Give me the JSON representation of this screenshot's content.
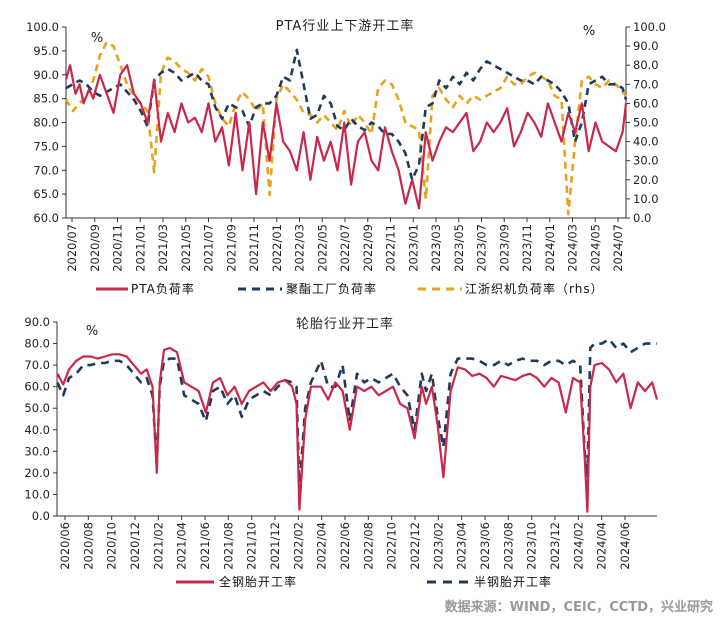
{
  "source_note": "数据来源：WIND，CEIC，CCTD，兴业研究",
  "colors": {
    "pta": "#c8284a",
    "polyester": "#203a5c",
    "weaving": "#e8a21c",
    "allsteel": "#c8284a",
    "semisteel": "#203a5c"
  },
  "chart_data": [
    {
      "type": "line",
      "title": "PTA行业上下游开工率",
      "left_unit": "%",
      "right_unit": "%",
      "ylim_left": [
        60,
        100
      ],
      "ylim_right": [
        0,
        100
      ],
      "yticks_left": [
        "60.0",
        "65.0",
        "70.0",
        "75.0",
        "80.0",
        "85.0",
        "90.0",
        "95.0",
        "100.0"
      ],
      "yticks_right": [
        "0.0",
        "10.0",
        "20.0",
        "30.0",
        "40.0",
        "50.0",
        "60.0",
        "70.0",
        "80.0",
        "90.0",
        "100.0"
      ],
      "x_tick_labels": [
        "2020/07",
        "2020/09",
        "2020/11",
        "2021/01",
        "2021/03",
        "2021/05",
        "2021/07",
        "2021/09",
        "2021/11",
        "2022/01",
        "2022/03",
        "2022/05",
        "2022/07",
        "2022/09",
        "2022/11",
        "2023/01",
        "2023/03",
        "2023/05",
        "2023/07",
        "2023/09",
        "2023/11",
        "2024/01",
        "2024/03",
        "2024/05",
        "2024/07"
      ],
      "x_start": 2020.5,
      "x_end": 2024.625,
      "series": [
        {
          "name": "PTA负荷率",
          "axis": "left",
          "style": "solid",
          "x": [
            2020.5,
            2020.53,
            2020.57,
            2020.6,
            2020.63,
            2020.67,
            2020.7,
            2020.75,
            2020.8,
            2020.85,
            2020.9,
            2020.95,
            2021.0,
            2021.05,
            2021.1,
            2021.15,
            2021.2,
            2021.25,
            2021.3,
            2021.35,
            2021.4,
            2021.45,
            2021.5,
            2021.55,
            2021.6,
            2021.65,
            2021.7,
            2021.75,
            2021.8,
            2021.85,
            2021.9,
            2021.95,
            2022.0,
            2022.05,
            2022.1,
            2022.15,
            2022.2,
            2022.25,
            2022.3,
            2022.35,
            2022.4,
            2022.45,
            2022.5,
            2022.55,
            2022.6,
            2022.65,
            2022.7,
            2022.75,
            2022.8,
            2022.85,
            2022.9,
            2022.95,
            2023.0,
            2023.05,
            2023.1,
            2023.15,
            2023.2,
            2023.25,
            2023.3,
            2023.35,
            2023.4,
            2023.45,
            2023.5,
            2023.55,
            2023.6,
            2023.65,
            2023.7,
            2023.75,
            2023.8,
            2023.85,
            2023.9,
            2023.95,
            2024.0,
            2024.05,
            2024.1,
            2024.15,
            2024.2,
            2024.25,
            2024.3,
            2024.35,
            2024.4,
            2024.45,
            2024.5,
            2024.55,
            2024.6,
            2024.625
          ],
          "y": [
            89,
            92,
            86,
            88,
            84,
            87,
            85,
            90,
            86,
            82,
            90,
            92,
            86,
            84,
            80,
            89,
            76,
            82,
            78,
            84,
            80,
            81,
            78,
            84,
            76,
            79,
            71,
            82,
            70,
            80,
            65,
            80,
            72,
            84,
            76,
            74,
            70,
            78,
            68,
            77,
            72,
            76,
            70,
            80,
            67,
            76,
            78,
            72,
            70,
            79,
            74,
            70,
            63,
            68,
            62,
            78,
            72,
            76,
            79,
            78,
            80,
            82,
            74,
            76,
            80,
            78,
            80,
            83,
            75,
            78,
            82,
            80,
            77,
            84,
            80,
            76,
            82,
            78,
            84,
            74,
            80,
            76,
            75,
            74,
            78,
            84
          ]
        },
        {
          "name": "聚酯工厂负荷率",
          "axis": "right",
          "style": "dash",
          "x": [
            2020.5,
            2020.55,
            2020.6,
            2020.65,
            2020.7,
            2020.75,
            2020.8,
            2020.85,
            2020.9,
            2020.95,
            2021.0,
            2021.05,
            2021.1,
            2021.15,
            2021.2,
            2021.25,
            2021.3,
            2021.35,
            2021.4,
            2021.45,
            2021.5,
            2021.55,
            2021.6,
            2021.65,
            2021.7,
            2021.75,
            2021.8,
            2021.85,
            2021.9,
            2021.95,
            2022.0,
            2022.05,
            2022.1,
            2022.15,
            2022.2,
            2022.25,
            2022.3,
            2022.35,
            2022.4,
            2022.45,
            2022.5,
            2022.55,
            2022.6,
            2022.65,
            2022.7,
            2022.75,
            2022.8,
            2022.85,
            2022.9,
            2022.95,
            2023.0,
            2023.05,
            2023.1,
            2023.15,
            2023.2,
            2023.25,
            2023.3,
            2023.35,
            2023.4,
            2023.45,
            2023.5,
            2023.55,
            2023.6,
            2023.65,
            2023.7,
            2023.75,
            2023.8,
            2023.85,
            2023.9,
            2023.95,
            2024.0,
            2024.05,
            2024.1,
            2024.15,
            2024.2,
            2024.25,
            2024.3,
            2024.35,
            2024.4,
            2024.45,
            2024.5,
            2024.55,
            2024.6,
            2024.625
          ],
          "y": [
            68,
            70,
            72,
            70,
            66,
            64,
            66,
            68,
            70,
            66,
            62,
            56,
            48,
            72,
            76,
            78,
            76,
            72,
            74,
            76,
            72,
            70,
            58,
            52,
            60,
            58,
            56,
            48,
            58,
            60,
            60,
            64,
            74,
            72,
            88,
            70,
            52,
            54,
            64,
            60,
            48,
            46,
            52,
            48,
            46,
            50,
            48,
            44,
            44,
            40,
            34,
            20,
            28,
            58,
            60,
            72,
            68,
            74,
            70,
            76,
            72,
            78,
            82,
            80,
            78,
            76,
            74,
            72,
            72,
            70,
            74,
            72,
            70,
            66,
            60,
            40,
            50,
            70,
            72,
            74,
            70,
            70,
            68,
            62
          ]
        },
        {
          "name": "江浙织机负荷率（rhs）",
          "axis": "right",
          "style": "dash",
          "x": [
            2020.5,
            2020.55,
            2020.6,
            2020.65,
            2020.7,
            2020.75,
            2020.8,
            2020.85,
            2020.9,
            2020.95,
            2021.0,
            2021.05,
            2021.1,
            2021.15,
            2021.2,
            2021.25,
            2021.3,
            2021.35,
            2021.4,
            2021.45,
            2021.5,
            2021.55,
            2021.6,
            2021.65,
            2021.7,
            2021.75,
            2021.8,
            2021.85,
            2021.9,
            2021.95,
            2022.0,
            2022.05,
            2022.1,
            2022.15,
            2022.2,
            2022.25,
            2022.3,
            2022.35,
            2022.4,
            2022.45,
            2022.5,
            2022.55,
            2022.6,
            2022.65,
            2022.7,
            2022.75,
            2022.8,
            2022.85,
            2022.9,
            2022.95,
            2023.0,
            2023.05,
            2023.1,
            2023.15,
            2023.2,
            2023.25,
            2023.3,
            2023.35,
            2023.4,
            2023.45,
            2023.5,
            2023.55,
            2023.6,
            2023.65,
            2023.7,
            2023.75,
            2023.8,
            2023.85,
            2023.9,
            2023.95,
            2024.0,
            2024.05,
            2024.1,
            2024.15,
            2024.2,
            2024.25,
            2024.3,
            2024.35,
            2024.4,
            2024.45,
            2024.5,
            2024.55,
            2024.6,
            2024.625
          ],
          "y": [
            62,
            56,
            60,
            64,
            72,
            85,
            92,
            90,
            80,
            70,
            64,
            60,
            56,
            24,
            76,
            84,
            82,
            78,
            76,
            72,
            78,
            74,
            60,
            52,
            48,
            60,
            66,
            62,
            56,
            60,
            12,
            62,
            70,
            66,
            62,
            55,
            54,
            50,
            54,
            50,
            46,
            56,
            48,
            54,
            50,
            44,
            68,
            72,
            70,
            62,
            50,
            48,
            46,
            10,
            64,
            68,
            62,
            58,
            64,
            60,
            64,
            62,
            64,
            66,
            68,
            74,
            70,
            70,
            74,
            76,
            74,
            72,
            64,
            62,
            2,
            40,
            72,
            74,
            70,
            68,
            72,
            70,
            66,
            64
          ]
        }
      ]
    },
    {
      "type": "line",
      "title": "轮胎行业开工率",
      "left_unit": "%",
      "ylim": [
        0,
        90
      ],
      "yticks": [
        "0.0",
        "10.0",
        "20.0",
        "30.0",
        "40.0",
        "50.0",
        "60.0",
        "70.0",
        "80.0",
        "90.0"
      ],
      "x_tick_labels": [
        "2020/06",
        "2020/08",
        "2020/10",
        "2020/12",
        "2021/02",
        "2021/04",
        "2021/06",
        "2021/08",
        "2021/10",
        "2021/12",
        "2022/02",
        "2022/04",
        "2022/06",
        "2022/08",
        "2022/10",
        "2022/12",
        "2023/02",
        "2023/04",
        "2023/06",
        "2023/08",
        "2023/10",
        "2023/12",
        "2024/02",
        "2024/04",
        "2024/06"
      ],
      "x_start": 2020.417,
      "x_end": 2024.583,
      "series": [
        {
          "name": "全钢胎开工率",
          "style": "solid",
          "x": [
            2020.42,
            2020.46,
            2020.5,
            2020.55,
            2020.6,
            2020.65,
            2020.7,
            2020.75,
            2020.8,
            2020.85,
            2020.9,
            2020.95,
            2021.0,
            2021.04,
            2021.08,
            2021.11,
            2021.13,
            2021.16,
            2021.2,
            2021.25,
            2021.3,
            2021.35,
            2021.4,
            2021.45,
            2021.5,
            2021.55,
            2021.6,
            2021.65,
            2021.7,
            2021.75,
            2021.8,
            2021.85,
            2021.9,
            2021.95,
            2022.0,
            2022.05,
            2022.08,
            2022.1,
            2022.14,
            2022.18,
            2022.25,
            2022.3,
            2022.35,
            2022.4,
            2022.45,
            2022.5,
            2022.55,
            2022.6,
            2022.65,
            2022.7,
            2022.75,
            2022.8,
            2022.85,
            2022.9,
            2022.95,
            2022.98,
            2023.02,
            2023.06,
            2023.1,
            2023.15,
            2023.2,
            2023.25,
            2023.3,
            2023.35,
            2023.4,
            2023.45,
            2023.5,
            2023.55,
            2023.6,
            2023.65,
            2023.7,
            2023.75,
            2023.8,
            2023.85,
            2023.9,
            2023.95,
            2024.0,
            2024.05,
            2024.08,
            2024.1,
            2024.12,
            2024.15,
            2024.2,
            2024.25,
            2024.3,
            2024.35,
            2024.4,
            2024.45,
            2024.5,
            2024.55,
            2024.583
          ],
          "y": [
            66,
            61,
            68,
            72,
            74,
            74,
            73,
            74,
            75,
            75,
            74,
            70,
            66,
            68,
            60,
            20,
            62,
            77,
            78,
            76,
            62,
            60,
            58,
            48,
            62,
            64,
            56,
            60,
            52,
            58,
            60,
            62,
            58,
            62,
            63,
            60,
            52,
            3,
            45,
            60,
            60,
            54,
            62,
            58,
            40,
            60,
            58,
            60,
            56,
            58,
            60,
            52,
            50,
            36,
            60,
            52,
            60,
            42,
            18,
            58,
            69,
            68,
            65,
            66,
            64,
            60,
            65,
            64,
            63,
            65,
            66,
            64,
            60,
            64,
            62,
            48,
            64,
            62,
            28,
            2,
            60,
            70,
            71,
            68,
            62,
            66,
            50,
            62,
            58,
            62,
            54
          ]
        },
        {
          "name": "半钢胎开工率",
          "style": "dash",
          "x": [
            2020.42,
            2020.46,
            2020.5,
            2020.55,
            2020.6,
            2020.65,
            2020.7,
            2020.75,
            2020.8,
            2020.85,
            2020.9,
            2020.95,
            2021.0,
            2021.04,
            2021.08,
            2021.11,
            2021.13,
            2021.16,
            2021.2,
            2021.25,
            2021.3,
            2021.35,
            2021.4,
            2021.45,
            2021.5,
            2021.55,
            2021.6,
            2021.65,
            2021.7,
            2021.75,
            2021.8,
            2021.85,
            2021.9,
            2021.95,
            2022.0,
            2022.05,
            2022.08,
            2022.1,
            2022.14,
            2022.18,
            2022.25,
            2022.3,
            2022.35,
            2022.4,
            2022.45,
            2022.5,
            2022.55,
            2022.6,
            2022.65,
            2022.7,
            2022.75,
            2022.8,
            2022.85,
            2022.9,
            2022.95,
            2022.98,
            2023.02,
            2023.06,
            2023.1,
            2023.15,
            2023.2,
            2023.25,
            2023.3,
            2023.35,
            2023.4,
            2023.45,
            2023.5,
            2023.55,
            2023.6,
            2023.65,
            2023.7,
            2023.75,
            2023.8,
            2023.85,
            2023.9,
            2023.95,
            2024.0,
            2024.05,
            2024.08,
            2024.1,
            2024.12,
            2024.15,
            2024.2,
            2024.25,
            2024.3,
            2024.35,
            2024.4,
            2024.45,
            2024.5,
            2024.55,
            2024.583
          ],
          "y": [
            62,
            56,
            64,
            66,
            70,
            70,
            71,
            71,
            72,
            72,
            70,
            66,
            62,
            64,
            56,
            24,
            60,
            72,
            73,
            73,
            56,
            54,
            52,
            44,
            58,
            60,
            52,
            56,
            46,
            54,
            56,
            58,
            56,
            60,
            63,
            62,
            60,
            12,
            50,
            62,
            72,
            60,
            60,
            70,
            44,
            66,
            62,
            64,
            62,
            64,
            66,
            60,
            56,
            40,
            66,
            58,
            66,
            46,
            32,
            66,
            73,
            73,
            73,
            72,
            70,
            70,
            72,
            70,
            72,
            73,
            72,
            72,
            70,
            72,
            72,
            70,
            72,
            70,
            30,
            18,
            78,
            80,
            80,
            82,
            78,
            80,
            76,
            78,
            80,
            80,
            80
          ]
        }
      ]
    }
  ],
  "legend1": [
    "PTA负荷率",
    "聚酯工厂负荷率",
    "江浙织机负荷率（rhs）"
  ],
  "legend2": [
    "全钢胎开工率",
    "半钢胎开工率"
  ]
}
